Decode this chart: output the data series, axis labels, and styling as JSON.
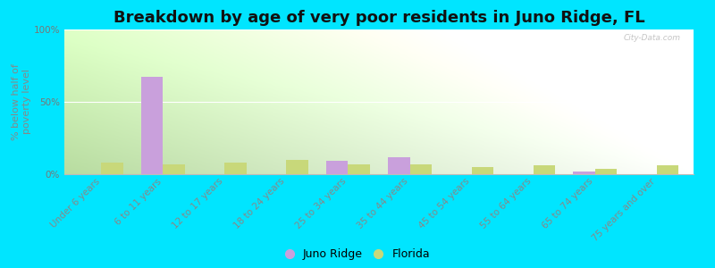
{
  "title": "Breakdown by age of very poor residents in Juno Ridge, FL",
  "ylabel": "% below half of\npoverty level",
  "categories": [
    "Under 6 years",
    "6 to 11 years",
    "12 to 17 years",
    "18 to 24 years",
    "25 to 34 years",
    "35 to 44 years",
    "45 to 54 years",
    "55 to 64 years",
    "65 to 74 years",
    "75 years and over"
  ],
  "juno_ridge": [
    0,
    67,
    0,
    0,
    9,
    12,
    0,
    0,
    2,
    0
  ],
  "florida": [
    8,
    7,
    8,
    10,
    7,
    7,
    5,
    6,
    4,
    6
  ],
  "juno_ridge_color": "#c9a0dc",
  "florida_color": "#c8d87a",
  "outer_bg": "#00e5ff",
  "plot_bg_left": "#b8dca0",
  "plot_bg_right": "#f0faf0",
  "ylim": [
    0,
    100
  ],
  "yticks": [
    0,
    50,
    100
  ],
  "ytick_labels": [
    "0%",
    "50%",
    "100%"
  ],
  "bar_width": 0.35,
  "title_fontsize": 13,
  "axis_label_fontsize": 8,
  "tick_fontsize": 7.5,
  "legend_labels": [
    "Juno Ridge",
    "Florida"
  ],
  "watermark": "City-Data.com"
}
